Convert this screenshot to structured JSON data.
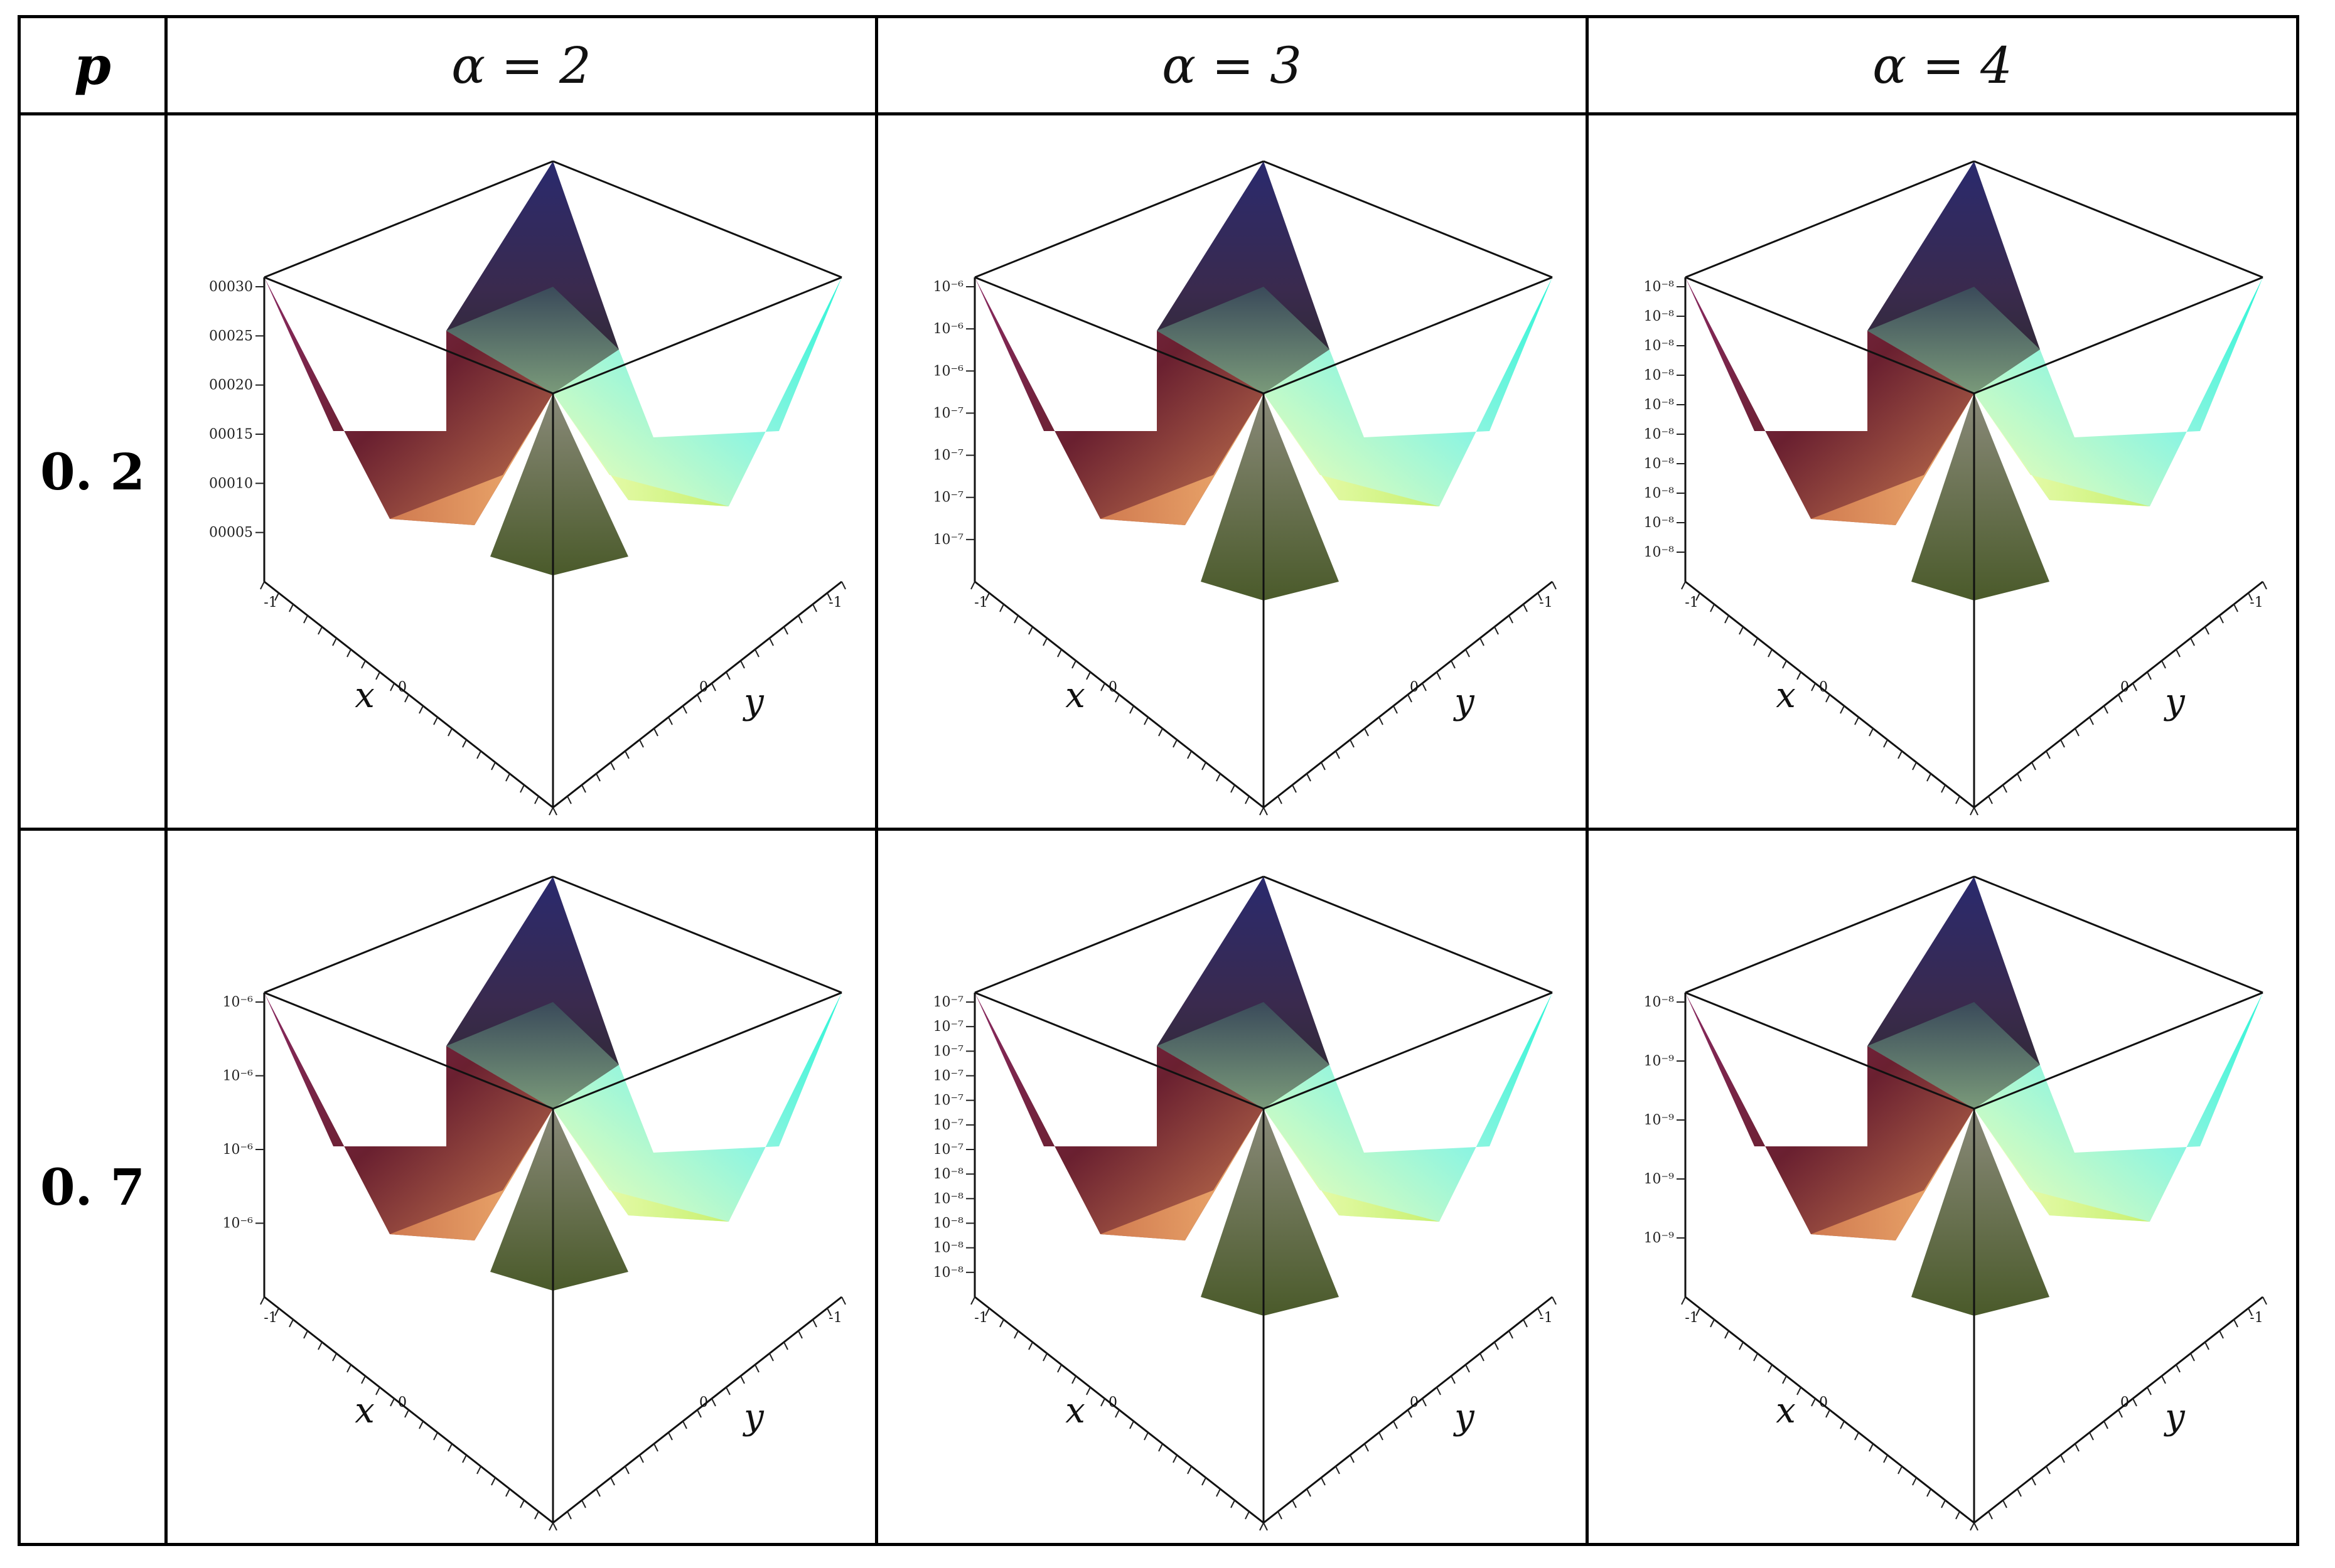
{
  "table": {
    "header": {
      "p_label": "p",
      "columns": [
        "α = 2",
        "α = 3",
        "α = 4"
      ]
    },
    "rows": [
      {
        "p": "0. 2",
        "plots": [
          {
            "zticks": [
              "00030",
              "00025",
              "00020",
              "00015",
              "00010",
              "00005"
            ]
          },
          {
            "zticks": [
              "10⁻⁶",
              "10⁻⁶",
              "10⁻⁶",
              "10⁻⁷",
              "10⁻⁷",
              "10⁻⁷",
              "10⁻⁷"
            ]
          },
          {
            "zticks": [
              "10⁻⁸",
              "10⁻⁸",
              "10⁻⁸",
              "10⁻⁸",
              "10⁻⁸",
              "10⁻⁸",
              "10⁻⁸",
              "10⁻⁸",
              "10⁻⁸",
              "10⁻⁸"
            ]
          }
        ]
      },
      {
        "p": "0. 7",
        "plots": [
          {
            "zticks": [
              "10⁻⁶",
              "10⁻⁶",
              "10⁻⁶",
              "10⁻⁶"
            ]
          },
          {
            "zticks": [
              "10⁻⁷",
              "10⁻⁷",
              "10⁻⁷",
              "10⁻⁷",
              "10⁻⁷",
              "10⁻⁷",
              "10⁻⁷",
              "10⁻⁸",
              "10⁻⁸",
              "10⁻⁸",
              "10⁻⁸",
              "10⁻⁸"
            ]
          },
          {
            "zticks": [
              "10⁻⁸",
              "10⁻⁹",
              "10⁻⁹",
              "10⁻⁹",
              "10⁻⁹"
            ]
          }
        ]
      }
    ],
    "axes": {
      "x_label": "x",
      "y_label": "y",
      "x_ticks": [
        "-1",
        "0"
      ],
      "y_ticks": [
        "-1",
        "0"
      ]
    }
  }
}
